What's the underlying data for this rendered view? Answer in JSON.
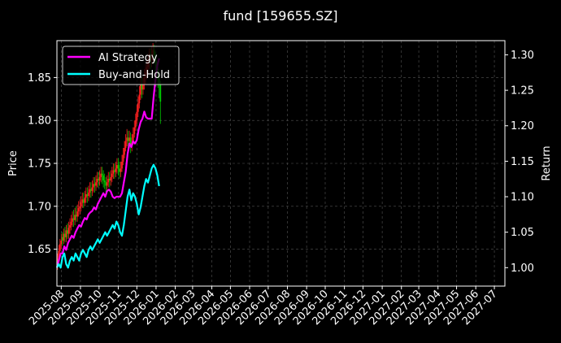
{
  "chart_data": {
    "type": "line",
    "title": "fund [159655.SZ]",
    "ylabel_left": "Price",
    "ylabel_right": "Return",
    "xlim": [
      "2025-07-25",
      "2027-07-18"
    ],
    "ylim_left": [
      1.607,
      1.893
    ],
    "ylim_right": [
      0.974,
      1.32
    ],
    "x_ticks": [
      "2025-08",
      "2025-09",
      "2025-10",
      "2025-11",
      "2025-12",
      "2026-01",
      "2026-02",
      "2026-03",
      "2026-04",
      "2026-05",
      "2026-06",
      "2026-07",
      "2026-08",
      "2026-09",
      "2026-10",
      "2026-11",
      "2026-12",
      "2027-01",
      "2027-02",
      "2027-03",
      "2027-04",
      "2027-05",
      "2027-06",
      "2027-07"
    ],
    "y_ticks_left": [
      "1.65",
      "1.70",
      "1.75",
      "1.80",
      "1.85"
    ],
    "y_ticks_right": [
      "1.00",
      "1.05",
      "1.10",
      "1.15",
      "1.20",
      "1.25",
      "1.30"
    ],
    "grid": true,
    "legend_position": "top-left",
    "colors": {
      "background": "#000000",
      "ai_strategy": "#ff00ff",
      "buy_and_hold": "#00ffff",
      "candle_up": "#ff2020",
      "candle_down": "#00cc00",
      "grid": "#555555",
      "axes": "#ffffff"
    },
    "series": [
      {
        "name": "AI Strategy",
        "axis": "right",
        "x": [
          "2025-07-25",
          "2025-07-28",
          "2025-07-31",
          "2025-08-03",
          "2025-08-06",
          "2025-08-09",
          "2025-08-12",
          "2025-08-15",
          "2025-08-18",
          "2025-08-21",
          "2025-08-24",
          "2025-08-27",
          "2025-08-30",
          "2025-09-02",
          "2025-09-05",
          "2025-09-08",
          "2025-09-11",
          "2025-09-14",
          "2025-09-17",
          "2025-09-20",
          "2025-09-23",
          "2025-09-26",
          "2025-09-29",
          "2025-10-02",
          "2025-10-05",
          "2025-10-08",
          "2025-10-11",
          "2025-10-14",
          "2025-10-17",
          "2025-10-20",
          "2025-10-23",
          "2025-10-26",
          "2025-10-29",
          "2025-11-01",
          "2025-11-04",
          "2025-11-07",
          "2025-11-10",
          "2025-11-13",
          "2025-11-16",
          "2025-11-19",
          "2025-11-22",
          "2025-11-25",
          "2025-11-28",
          "2025-12-01",
          "2025-12-04",
          "2025-12-07",
          "2025-12-10",
          "2025-12-13",
          "2025-12-16",
          "2025-12-19",
          "2025-12-22",
          "2025-12-25",
          "2025-12-28",
          "2025-12-31",
          "2026-01-03",
          "2026-01-06"
        ],
        "y": [
          1.0,
          1.01,
          1.02,
          1.02,
          1.03,
          1.025,
          1.035,
          1.04,
          1.045,
          1.042,
          1.05,
          1.055,
          1.06,
          1.058,
          1.065,
          1.07,
          1.068,
          1.075,
          1.078,
          1.08,
          1.085,
          1.082,
          1.09,
          1.095,
          1.1,
          1.105,
          1.1,
          1.108,
          1.11,
          1.107,
          1.1,
          1.098,
          1.1,
          1.1,
          1.1,
          1.105,
          1.12,
          1.135,
          1.16,
          1.175,
          1.17,
          1.178,
          1.175,
          1.18,
          1.195,
          1.205,
          1.21,
          1.22,
          1.212,
          1.21,
          1.21,
          1.21,
          1.24,
          1.265,
          1.285,
          1.295
        ]
      },
      {
        "name": "Buy-and-Hold",
        "axis": "right",
        "x": [
          "2025-07-25",
          "2025-07-28",
          "2025-07-31",
          "2025-08-03",
          "2025-08-06",
          "2025-08-09",
          "2025-08-12",
          "2025-08-15",
          "2025-08-18",
          "2025-08-21",
          "2025-08-24",
          "2025-08-27",
          "2025-08-30",
          "2025-09-02",
          "2025-09-05",
          "2025-09-08",
          "2025-09-11",
          "2025-09-14",
          "2025-09-17",
          "2025-09-20",
          "2025-09-23",
          "2025-09-26",
          "2025-09-29",
          "2025-10-02",
          "2025-10-05",
          "2025-10-08",
          "2025-10-11",
          "2025-10-14",
          "2025-10-17",
          "2025-10-20",
          "2025-10-23",
          "2025-10-26",
          "2025-10-29",
          "2025-11-01",
          "2025-11-04",
          "2025-11-07",
          "2025-11-10",
          "2025-11-13",
          "2025-11-16",
          "2025-11-19",
          "2025-11-22",
          "2025-11-25",
          "2025-11-28",
          "2025-12-01",
          "2025-12-04",
          "2025-12-07",
          "2025-12-10",
          "2025-12-13",
          "2025-12-16",
          "2025-12-19",
          "2025-12-22",
          "2025-12-25",
          "2025-12-28",
          "2025-12-31",
          "2026-01-03",
          "2026-01-06"
        ],
        "y": [
          1.0,
          1.005,
          1.0,
          1.015,
          1.02,
          1.005,
          1.0,
          1.01,
          1.015,
          1.01,
          1.02,
          1.015,
          1.01,
          1.02,
          1.025,
          1.02,
          1.015,
          1.025,
          1.03,
          1.025,
          1.03,
          1.035,
          1.04,
          1.035,
          1.04,
          1.045,
          1.05,
          1.045,
          1.05,
          1.055,
          1.06,
          1.055,
          1.065,
          1.06,
          1.05,
          1.045,
          1.06,
          1.08,
          1.1,
          1.11,
          1.095,
          1.105,
          1.1,
          1.09,
          1.075,
          1.085,
          1.1,
          1.115,
          1.125,
          1.12,
          1.13,
          1.14,
          1.145,
          1.14,
          1.13,
          1.115
        ]
      }
    ],
    "candles": {
      "axis": "left",
      "x": [
        "2025-07-26",
        "2025-07-28",
        "2025-07-30",
        "2025-08-01",
        "2025-08-03",
        "2025-08-05",
        "2025-08-07",
        "2025-08-09",
        "2025-08-11",
        "2025-08-13",
        "2025-08-15",
        "2025-08-17",
        "2025-08-19",
        "2025-08-21",
        "2025-08-23",
        "2025-08-25",
        "2025-08-27",
        "2025-08-29",
        "2025-08-31",
        "2025-09-02",
        "2025-09-04",
        "2025-09-06",
        "2025-09-08",
        "2025-09-10",
        "2025-09-12",
        "2025-09-14",
        "2025-09-16",
        "2025-09-18",
        "2025-09-20",
        "2025-09-22",
        "2025-09-24",
        "2025-09-26",
        "2025-09-28",
        "2025-09-30",
        "2025-10-02",
        "2025-10-04",
        "2025-10-06",
        "2025-10-08",
        "2025-10-10",
        "2025-10-12",
        "2025-10-14",
        "2025-10-16",
        "2025-10-18",
        "2025-10-20",
        "2025-10-22",
        "2025-10-24",
        "2025-10-26",
        "2025-10-28",
        "2025-10-30",
        "2025-11-01",
        "2025-11-03",
        "2025-11-05",
        "2025-11-07",
        "2025-11-09",
        "2025-11-11",
        "2025-11-13",
        "2025-11-15",
        "2025-11-17",
        "2025-11-19",
        "2025-11-21",
        "2025-11-23",
        "2025-11-25",
        "2025-11-27",
        "2025-11-29",
        "2025-12-01",
        "2025-12-03",
        "2025-12-05",
        "2025-12-07",
        "2025-12-09",
        "2025-12-11",
        "2025-12-13",
        "2025-12-15",
        "2025-12-17",
        "2025-12-19",
        "2025-12-21",
        "2025-12-23",
        "2025-12-25",
        "2025-12-27",
        "2025-12-29",
        "2025-12-31",
        "2026-01-02",
        "2026-01-04",
        "2026-01-06",
        "2026-01-08"
      ],
      "open": [
        1.632,
        1.64,
        1.648,
        1.656,
        1.664,
        1.66,
        1.668,
        1.664,
        1.672,
        1.668,
        1.675,
        1.678,
        1.682,
        1.686,
        1.684,
        1.69,
        1.688,
        1.694,
        1.698,
        1.7,
        1.704,
        1.708,
        1.704,
        1.71,
        1.714,
        1.712,
        1.716,
        1.72,
        1.718,
        1.722,
        1.726,
        1.724,
        1.728,
        1.732,
        1.73,
        1.734,
        1.738,
        1.736,
        1.73,
        1.728,
        1.724,
        1.728,
        1.732,
        1.73,
        1.734,
        1.738,
        1.742,
        1.74,
        1.744,
        1.748,
        1.744,
        1.74,
        1.744,
        1.752,
        1.76,
        1.768,
        1.776,
        1.78,
        1.776,
        1.78,
        1.77,
        1.774,
        1.784,
        1.792,
        1.8,
        1.81,
        1.82,
        1.83,
        1.842,
        1.836,
        1.842,
        1.85,
        1.856,
        1.862,
        1.868,
        1.874,
        1.87,
        1.876,
        1.882,
        1.876,
        1.868,
        1.86,
        1.85,
        1.842
      ],
      "close": [
        1.64,
        1.648,
        1.656,
        1.66,
        1.66,
        1.668,
        1.664,
        1.672,
        1.668,
        1.675,
        1.678,
        1.682,
        1.686,
        1.684,
        1.69,
        1.688,
        1.694,
        1.698,
        1.7,
        1.704,
        1.708,
        1.704,
        1.71,
        1.714,
        1.712,
        1.716,
        1.72,
        1.718,
        1.722,
        1.726,
        1.724,
        1.728,
        1.732,
        1.73,
        1.734,
        1.738,
        1.736,
        1.73,
        1.728,
        1.724,
        1.728,
        1.732,
        1.73,
        1.734,
        1.738,
        1.742,
        1.74,
        1.744,
        1.748,
        1.744,
        1.74,
        1.744,
        1.752,
        1.76,
        1.768,
        1.776,
        1.78,
        1.776,
        1.78,
        1.77,
        1.774,
        1.784,
        1.792,
        1.8,
        1.81,
        1.82,
        1.83,
        1.842,
        1.836,
        1.842,
        1.85,
        1.856,
        1.862,
        1.868,
        1.874,
        1.87,
        1.876,
        1.882,
        1.876,
        1.868,
        1.86,
        1.85,
        1.842,
        1.822
      ],
      "high": [
        1.645,
        1.655,
        1.662,
        1.668,
        1.67,
        1.674,
        1.676,
        1.678,
        1.68,
        1.682,
        1.686,
        1.69,
        1.694,
        1.696,
        1.698,
        1.7,
        1.702,
        1.706,
        1.708,
        1.712,
        1.716,
        1.716,
        1.718,
        1.722,
        1.722,
        1.724,
        1.728,
        1.728,
        1.73,
        1.734,
        1.734,
        1.736,
        1.74,
        1.74,
        1.742,
        1.746,
        1.746,
        1.742,
        1.738,
        1.734,
        1.736,
        1.74,
        1.74,
        1.742,
        1.746,
        1.75,
        1.75,
        1.752,
        1.756,
        1.756,
        1.752,
        1.752,
        1.76,
        1.768,
        1.776,
        1.784,
        1.79,
        1.788,
        1.788,
        1.786,
        1.784,
        1.792,
        1.8,
        1.808,
        1.818,
        1.828,
        1.84,
        1.852,
        1.85,
        1.852,
        1.86,
        1.866,
        1.872,
        1.878,
        1.884,
        1.884,
        1.886,
        1.89,
        1.888,
        1.88,
        1.87,
        1.862,
        1.854,
        1.846
      ],
      "low": [
        1.626,
        1.634,
        1.642,
        1.65,
        1.654,
        1.656,
        1.658,
        1.658,
        1.662,
        1.662,
        1.668,
        1.672,
        1.676,
        1.676,
        1.678,
        1.682,
        1.682,
        1.688,
        1.69,
        1.694,
        1.698,
        1.698,
        1.7,
        1.704,
        1.704,
        1.706,
        1.71,
        1.71,
        1.712,
        1.716,
        1.716,
        1.718,
        1.722,
        1.722,
        1.724,
        1.728,
        1.726,
        1.722,
        1.72,
        1.716,
        1.718,
        1.722,
        1.722,
        1.724,
        1.728,
        1.732,
        1.732,
        1.734,
        1.738,
        1.736,
        1.732,
        1.734,
        1.74,
        1.748,
        1.756,
        1.764,
        1.77,
        1.768,
        1.768,
        1.762,
        1.764,
        1.772,
        1.78,
        1.788,
        1.796,
        1.804,
        1.814,
        1.824,
        1.826,
        1.83,
        1.836,
        1.842,
        1.848,
        1.854,
        1.86,
        1.86,
        1.862,
        1.868,
        1.866,
        1.858,
        1.848,
        1.838,
        1.826,
        1.796
      ]
    }
  }
}
